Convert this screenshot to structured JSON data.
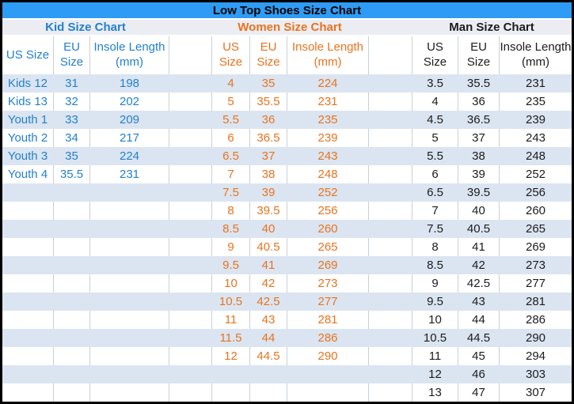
{
  "title": "Low Top Shoes Size Chart",
  "colors": {
    "title_bg": "#2E9CF4",
    "title_text": "#000000",
    "subheader_bg": "#EBEDF2",
    "band_row": "#DBE5F1",
    "white_row": "#FFFFFF",
    "grid_line": "#C9CFD8",
    "outer_border": "#000000",
    "kid_accent": "#2380CE",
    "women_accent": "#E8731E",
    "man_accent": "#1C1C1C"
  },
  "chart_data": [
    {
      "type": "table",
      "title": "Kid Size Chart",
      "color": "#2380CE",
      "columns": [
        "US Size",
        "EU\nSize",
        "Insole Length\n(mm)"
      ],
      "rows": [
        [
          "Kids 12",
          "31",
          "198"
        ],
        [
          "Kids 13",
          "32",
          "202"
        ],
        [
          "Youth 1",
          "33",
          "209"
        ],
        [
          "Youth 2",
          "34",
          "217"
        ],
        [
          "Youth 3",
          "35",
          "224"
        ],
        [
          "Youth 4",
          "35.5",
          "231"
        ]
      ]
    },
    {
      "type": "table",
      "title": "Women Size Chart",
      "color": "#E8731E",
      "columns": [
        "US\nSize",
        "EU\nSize",
        "Insole Length\n(mm)"
      ],
      "rows": [
        [
          "4",
          "35",
          "224"
        ],
        [
          "5",
          "35.5",
          "231"
        ],
        [
          "5.5",
          "36",
          "235"
        ],
        [
          "6",
          "36.5",
          "239"
        ],
        [
          "6.5",
          "37",
          "243"
        ],
        [
          "7",
          "38",
          "248"
        ],
        [
          "7.5",
          "39",
          "252"
        ],
        [
          "8",
          "39.5",
          "256"
        ],
        [
          "8.5",
          "40",
          "260"
        ],
        [
          "9",
          "40.5",
          "265"
        ],
        [
          "9.5",
          "41",
          "269"
        ],
        [
          "10",
          "42",
          "273"
        ],
        [
          "10.5",
          "42.5",
          "277"
        ],
        [
          "11",
          "43",
          "281"
        ],
        [
          "11.5",
          "44",
          "286"
        ],
        [
          "12",
          "44.5",
          "290"
        ]
      ]
    },
    {
      "type": "table",
      "title": "Man Size Chart",
      "color": "#1C1C1C",
      "columns": [
        "US\nSize",
        "EU\nSize",
        "Insole Length\n(mm)"
      ],
      "rows": [
        [
          "3.5",
          "35.5",
          "231"
        ],
        [
          "4",
          "36",
          "235"
        ],
        [
          "4.5",
          "36.5",
          "239"
        ],
        [
          "5",
          "37",
          "243"
        ],
        [
          "5.5",
          "38",
          "248"
        ],
        [
          "6",
          "39",
          "252"
        ],
        [
          "6.5",
          "39.5",
          "256"
        ],
        [
          "7",
          "40",
          "260"
        ],
        [
          "7.5",
          "40.5",
          "265"
        ],
        [
          "8",
          "41",
          "269"
        ],
        [
          "8.5",
          "42",
          "273"
        ],
        [
          "9",
          "42.5",
          "277"
        ],
        [
          "9.5",
          "43",
          "281"
        ],
        [
          "10",
          "44",
          "286"
        ],
        [
          "10.5",
          "44.5",
          "290"
        ],
        [
          "11",
          "45",
          "294"
        ],
        [
          "12",
          "46",
          "303"
        ],
        [
          "13",
          "47",
          "307"
        ]
      ]
    }
  ]
}
